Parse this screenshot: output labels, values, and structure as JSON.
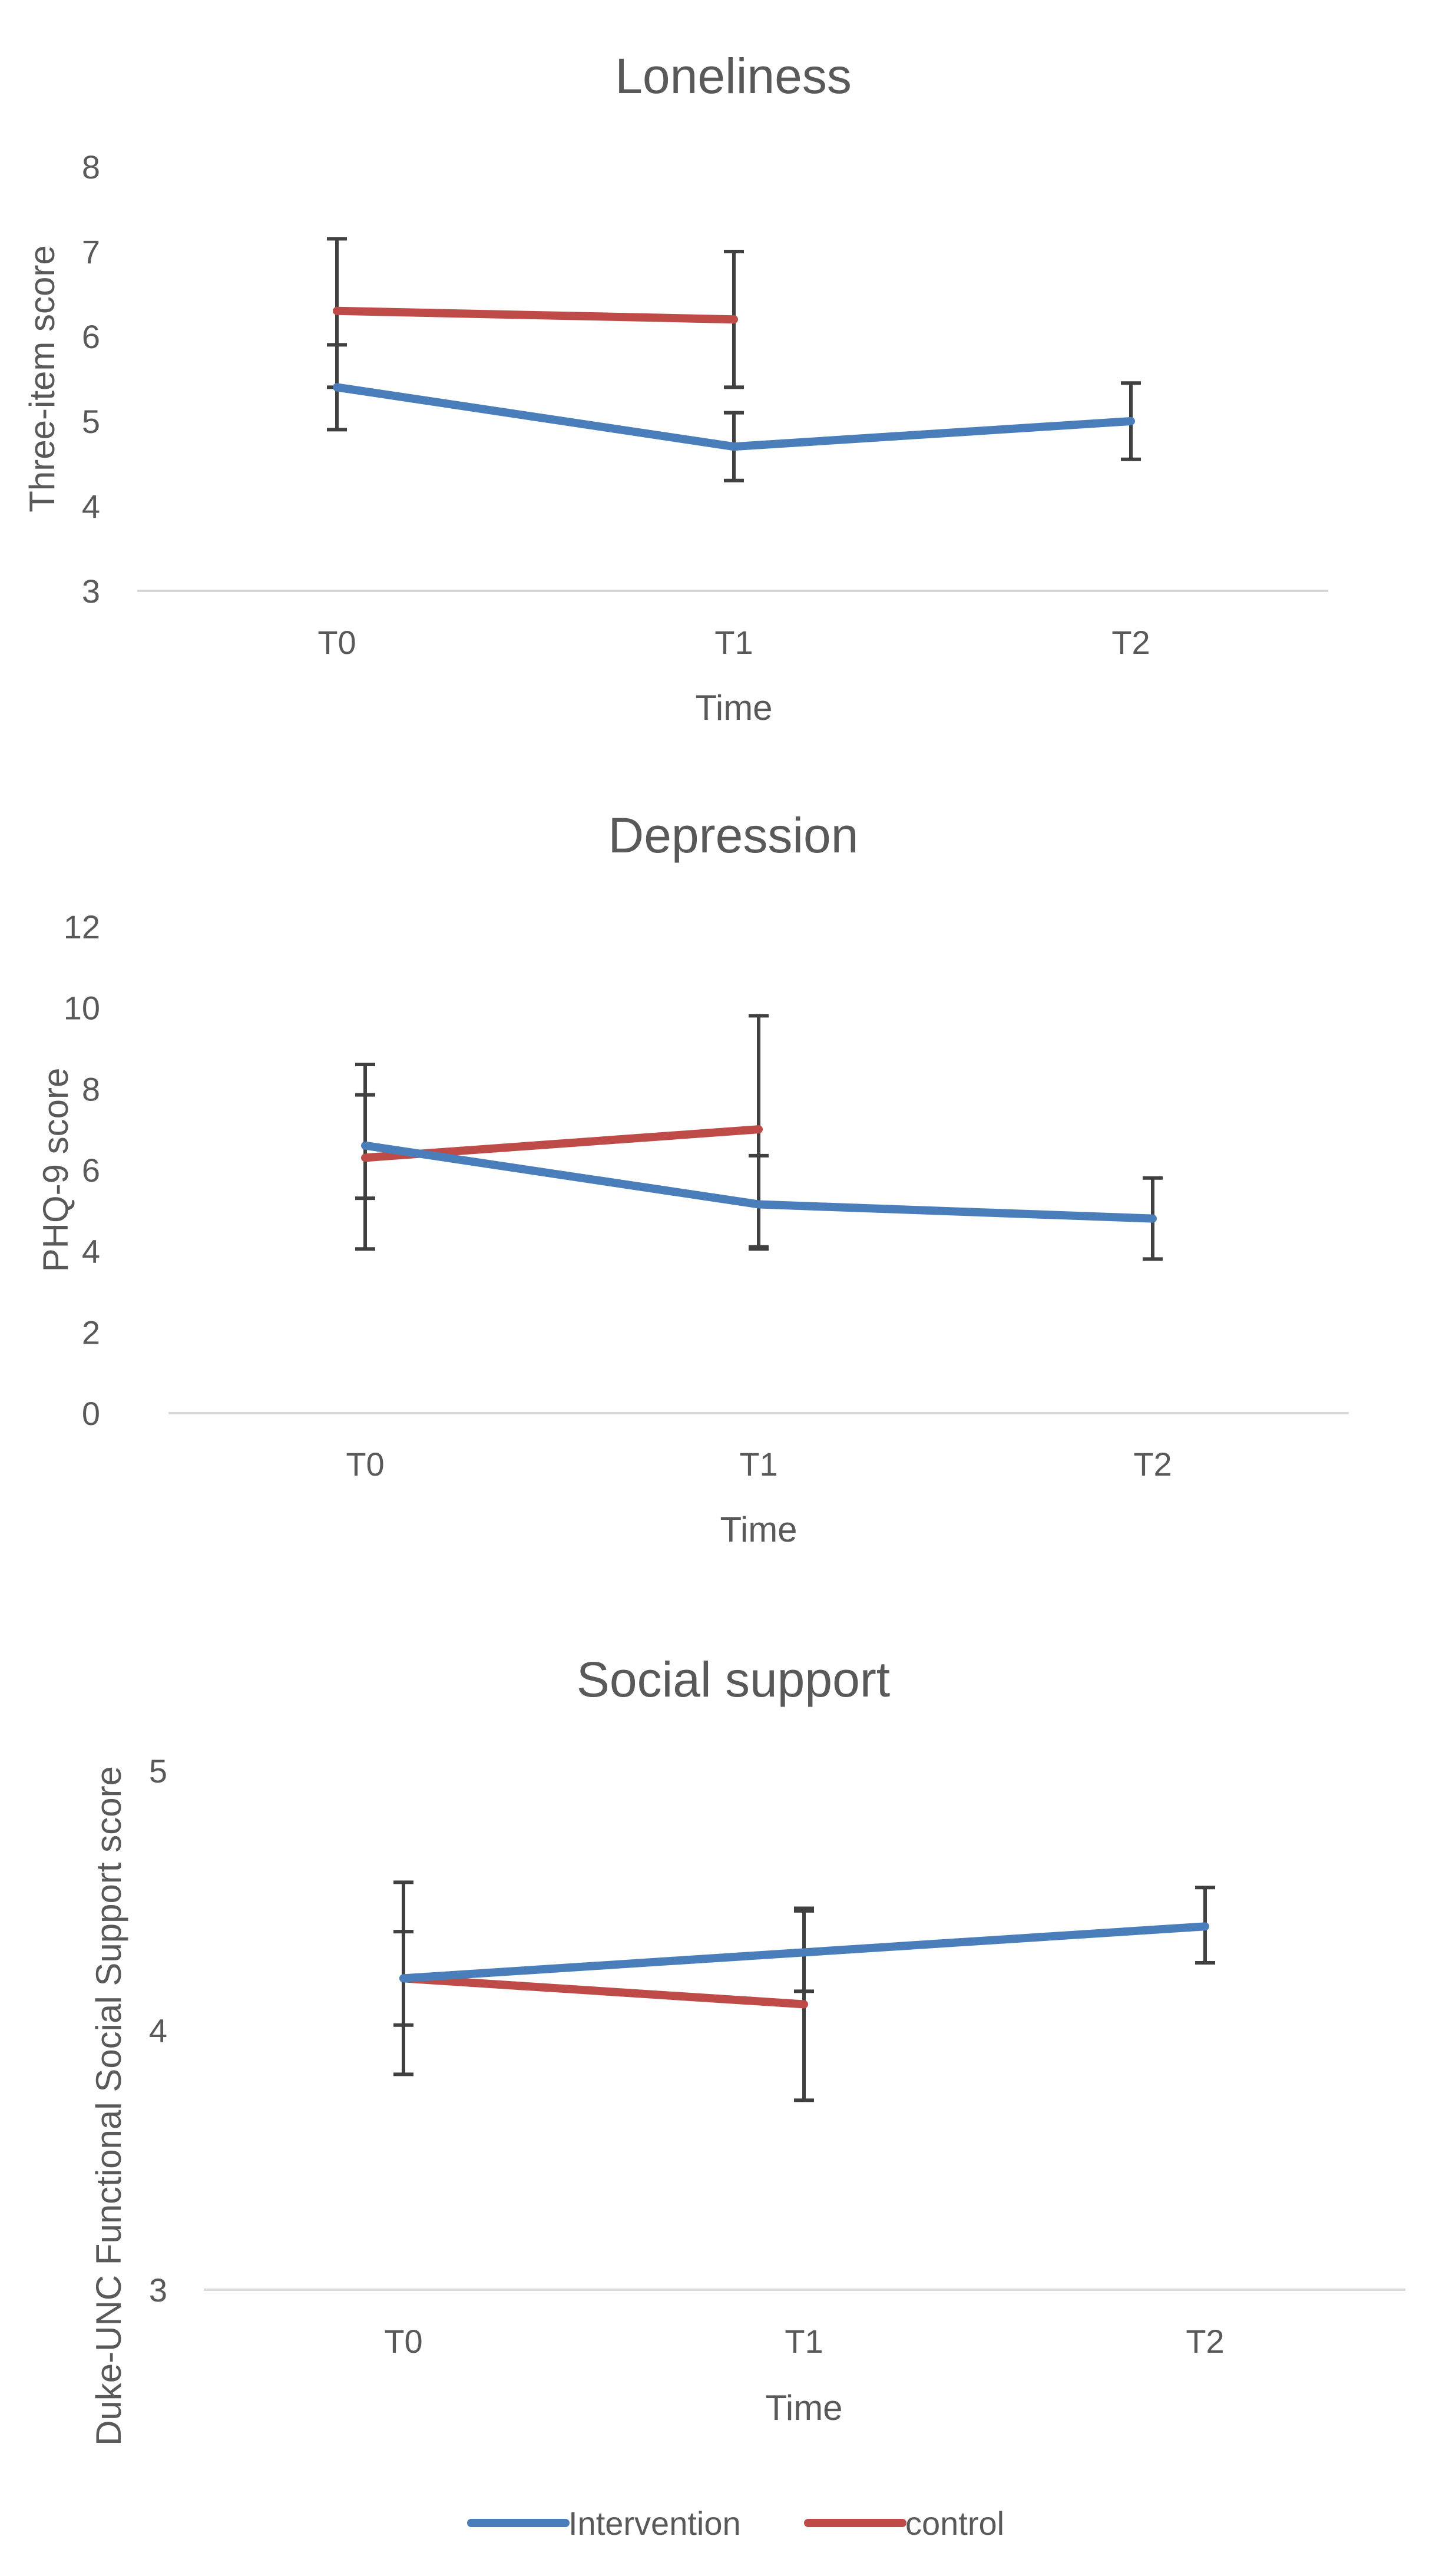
{
  "chart_data": [
    {
      "type": "line",
      "title": "Loneliness",
      "xlabel": "Time",
      "ylabel": "Three-item score",
      "categories": [
        "T0",
        "T1",
        "T2"
      ],
      "ylim": [
        3,
        8
      ],
      "yticks": [
        3,
        4,
        5,
        6,
        7,
        8
      ],
      "grid": false,
      "series": [
        {
          "name": "Intervention",
          "color": "#4a7ebb",
          "values": [
            5.4,
            4.7,
            5.0
          ],
          "err_low": [
            4.9,
            4.3,
            4.55
          ],
          "err_high": [
            5.9,
            5.1,
            5.45
          ]
        },
        {
          "name": "control",
          "color": "#be4b48",
          "values": [
            6.3,
            6.2,
            null
          ],
          "err_low": [
            5.4,
            5.4,
            null
          ],
          "err_high": [
            7.15,
            7.0,
            null
          ]
        }
      ]
    },
    {
      "type": "line",
      "title": "Depression",
      "xlabel": "Time",
      "ylabel": "PHQ-9 score",
      "categories": [
        "T0",
        "T1",
        "T2"
      ],
      "ylim": [
        0,
        12
      ],
      "yticks": [
        0,
        2,
        4,
        6,
        8,
        10,
        12
      ],
      "grid": false,
      "series": [
        {
          "name": "Intervention",
          "color": "#4a7ebb",
          "values": [
            6.6,
            5.15,
            4.8
          ],
          "err_low": [
            5.3,
            4.05,
            3.8
          ],
          "err_high": [
            7.85,
            6.35,
            5.8
          ]
        },
        {
          "name": "control",
          "color": "#be4b48",
          "values": [
            6.3,
            7.0,
            null
          ],
          "err_low": [
            4.05,
            4.1,
            null
          ],
          "err_high": [
            8.6,
            9.8,
            null
          ]
        }
      ]
    },
    {
      "type": "line",
      "title": "Social support",
      "xlabel": "Time",
      "ylabel": "Duke-UNC Functional Social Support score",
      "categories": [
        "T0",
        "T1",
        "T2"
      ],
      "ylim": [
        3,
        5
      ],
      "yticks": [
        3,
        4,
        5
      ],
      "grid": false,
      "series": [
        {
          "name": "Intervention",
          "color": "#4a7ebb",
          "values": [
            4.2,
            4.3,
            4.4
          ],
          "err_low": [
            4.02,
            4.15,
            4.26
          ],
          "err_high": [
            4.38,
            4.47,
            4.55
          ]
        },
        {
          "name": "control",
          "color": "#be4b48",
          "values": [
            4.2,
            4.1,
            null
          ],
          "err_low": [
            3.83,
            3.73,
            null
          ],
          "err_high": [
            4.57,
            4.46,
            null
          ]
        }
      ]
    }
  ],
  "legend": {
    "items": [
      {
        "name": "Intervention",
        "color": "#4a7ebb"
      },
      {
        "name": "control",
        "color": "#be4b48"
      }
    ]
  }
}
